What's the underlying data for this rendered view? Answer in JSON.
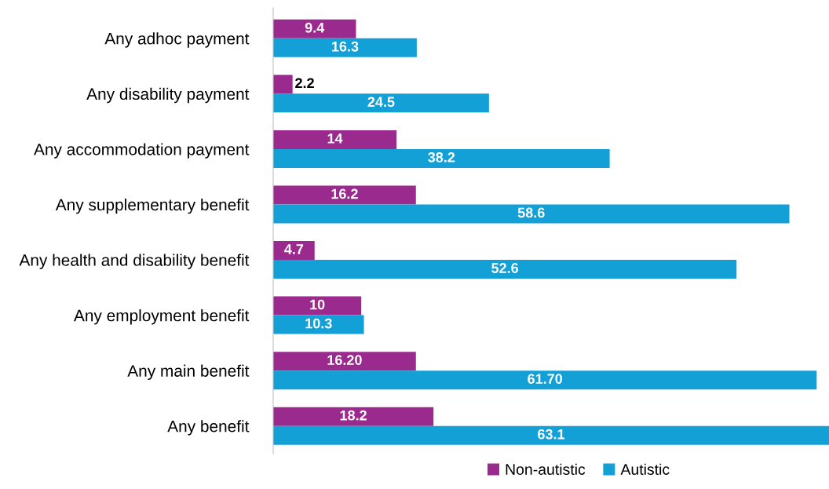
{
  "chart_data": {
    "type": "bar",
    "orientation": "horizontal",
    "legend": "bottom right",
    "grid": false,
    "categories": [
      "Any adhoc payment",
      "Any disability payment",
      "Any accommodation payment",
      "Any supplementary benefit",
      "Any health and disability benefit",
      "Any employment benefit",
      "Any main benefit",
      "Any benefit"
    ],
    "series": [
      {
        "name": "Non-autistic",
        "color": "#9b2a8f",
        "values": [
          9.4,
          2.2,
          14,
          16.2,
          4.7,
          10,
          16.2,
          18.2
        ],
        "value_labels": [
          "9.4",
          "2.2",
          "14",
          "16.2",
          "4.7",
          "10",
          "16.20",
          "18.2"
        ]
      },
      {
        "name": "Autistic",
        "color": "#12a0d7",
        "values": [
          16.3,
          24.5,
          38.2,
          58.6,
          52.6,
          10.3,
          61.7,
          63.1
        ],
        "value_labels": [
          "16.3",
          "24.5",
          "38.2",
          "58.6",
          "52.6",
          "10.3",
          "61.70",
          "63.1"
        ]
      }
    ]
  }
}
